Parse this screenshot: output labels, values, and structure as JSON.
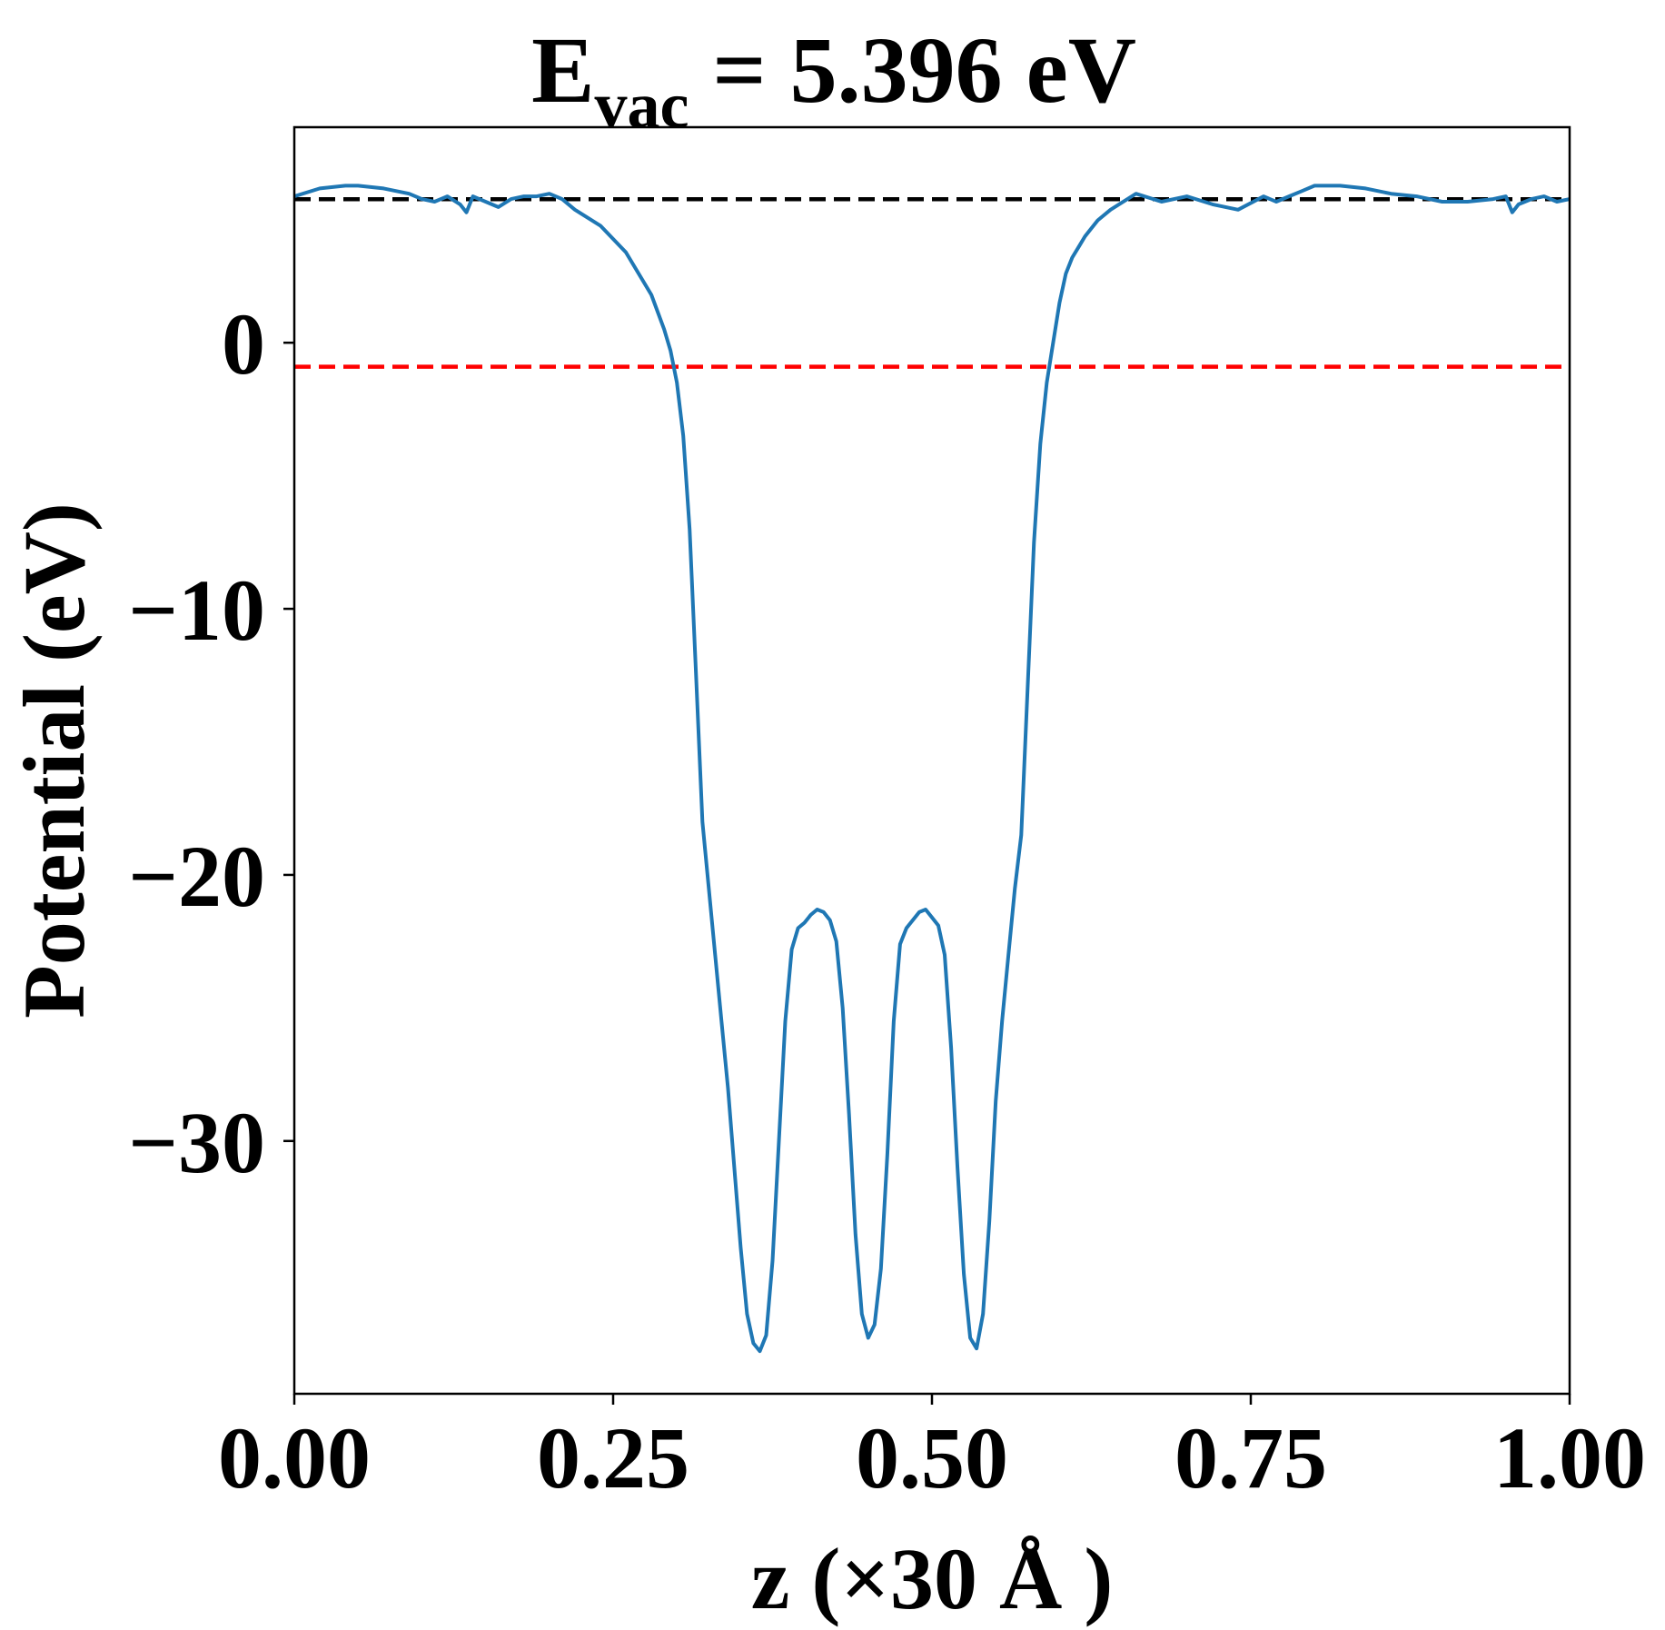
{
  "chart_data": {
    "type": "line",
    "title": {
      "main": "E",
      "subscript": "vac",
      "rest": " = 5.396 eV"
    },
    "xlabel": "z (×30 Å )",
    "ylabel": "Potential (eV)",
    "xlim": [
      0.0,
      1.0
    ],
    "ylim": [
      -39.5,
      8.1
    ],
    "xticks": [
      0.0,
      0.25,
      0.5,
      0.75,
      1.0
    ],
    "xtick_labels": [
      "0.00",
      "0.25",
      "0.50",
      "0.75",
      "1.00"
    ],
    "yticks": [
      0,
      -10,
      -20,
      -30
    ],
    "ytick_labels": [
      "0",
      "−10",
      "−20",
      "−30"
    ],
    "grid": false,
    "colors": {
      "series": "#1f77b4",
      "vacuum_line": "#000000",
      "fermi_line": "#ff0000",
      "axes": "#000000",
      "background": "#ffffff"
    },
    "reference_lines": [
      {
        "y": 5.396,
        "color": "#000000",
        "style": "dashed"
      },
      {
        "y": -0.9,
        "color": "#ff0000",
        "style": "dashed"
      }
    ],
    "series": [
      {
        "color": "#1f77b4",
        "x": [
          0.0,
          0.02,
          0.04,
          0.05,
          0.07,
          0.09,
          0.1,
          0.11,
          0.12,
          0.13,
          0.135,
          0.14,
          0.15,
          0.16,
          0.17,
          0.18,
          0.19,
          0.2,
          0.21,
          0.22,
          0.24,
          0.26,
          0.28,
          0.29,
          0.295,
          0.3,
          0.305,
          0.31,
          0.315,
          0.32,
          0.325,
          0.33,
          0.335,
          0.34,
          0.345,
          0.35,
          0.355,
          0.36,
          0.365,
          0.37,
          0.375,
          0.38,
          0.385,
          0.39,
          0.395,
          0.4,
          0.405,
          0.41,
          0.415,
          0.42,
          0.425,
          0.43,
          0.435,
          0.44,
          0.445,
          0.45,
          0.455,
          0.46,
          0.465,
          0.47,
          0.475,
          0.48,
          0.485,
          0.49,
          0.495,
          0.5,
          0.505,
          0.51,
          0.515,
          0.52,
          0.525,
          0.53,
          0.535,
          0.54,
          0.545,
          0.55,
          0.555,
          0.56,
          0.565,
          0.57,
          0.575,
          0.58,
          0.585,
          0.59,
          0.595,
          0.6,
          0.605,
          0.61,
          0.615,
          0.62,
          0.63,
          0.64,
          0.66,
          0.68,
          0.7,
          0.72,
          0.74,
          0.76,
          0.77,
          0.78,
          0.79,
          0.8,
          0.82,
          0.84,
          0.86,
          0.88,
          0.9,
          0.92,
          0.94,
          0.95,
          0.955,
          0.96,
          0.97,
          0.98,
          0.99,
          1.0
        ],
        "y": [
          5.5,
          5.8,
          5.9,
          5.9,
          5.8,
          5.6,
          5.4,
          5.3,
          5.5,
          5.2,
          4.9,
          5.5,
          5.3,
          5.1,
          5.4,
          5.5,
          5.5,
          5.6,
          5.4,
          5.0,
          4.4,
          3.4,
          1.8,
          0.5,
          -0.3,
          -1.5,
          -3.5,
          -7.0,
          -12.5,
          -18.0,
          -20.5,
          -23.0,
          -25.5,
          -28.0,
          -31.0,
          -34.0,
          -36.5,
          -37.6,
          -37.9,
          -37.3,
          -34.5,
          -30.0,
          -25.5,
          -22.8,
          -22.0,
          -21.8,
          -21.5,
          -21.3,
          -21.4,
          -21.7,
          -22.5,
          -25.0,
          -29.0,
          -33.5,
          -36.5,
          -37.4,
          -36.9,
          -34.8,
          -30.5,
          -25.5,
          -22.6,
          -22.0,
          -21.7,
          -21.4,
          -21.3,
          -21.6,
          -21.9,
          -23.0,
          -26.5,
          -31.0,
          -35.0,
          -37.4,
          -37.8,
          -36.5,
          -33.0,
          -28.5,
          -25.5,
          -23.0,
          -20.5,
          -18.5,
          -13.0,
          -7.5,
          -3.8,
          -1.5,
          0.0,
          1.5,
          2.6,
          3.2,
          3.6,
          4.0,
          4.6,
          5.0,
          5.6,
          5.3,
          5.5,
          5.2,
          5.0,
          5.5,
          5.3,
          5.5,
          5.7,
          5.9,
          5.9,
          5.8,
          5.6,
          5.5,
          5.3,
          5.3,
          5.4,
          5.5,
          4.9,
          5.2,
          5.4,
          5.5,
          5.3,
          5.4
        ]
      }
    ]
  }
}
